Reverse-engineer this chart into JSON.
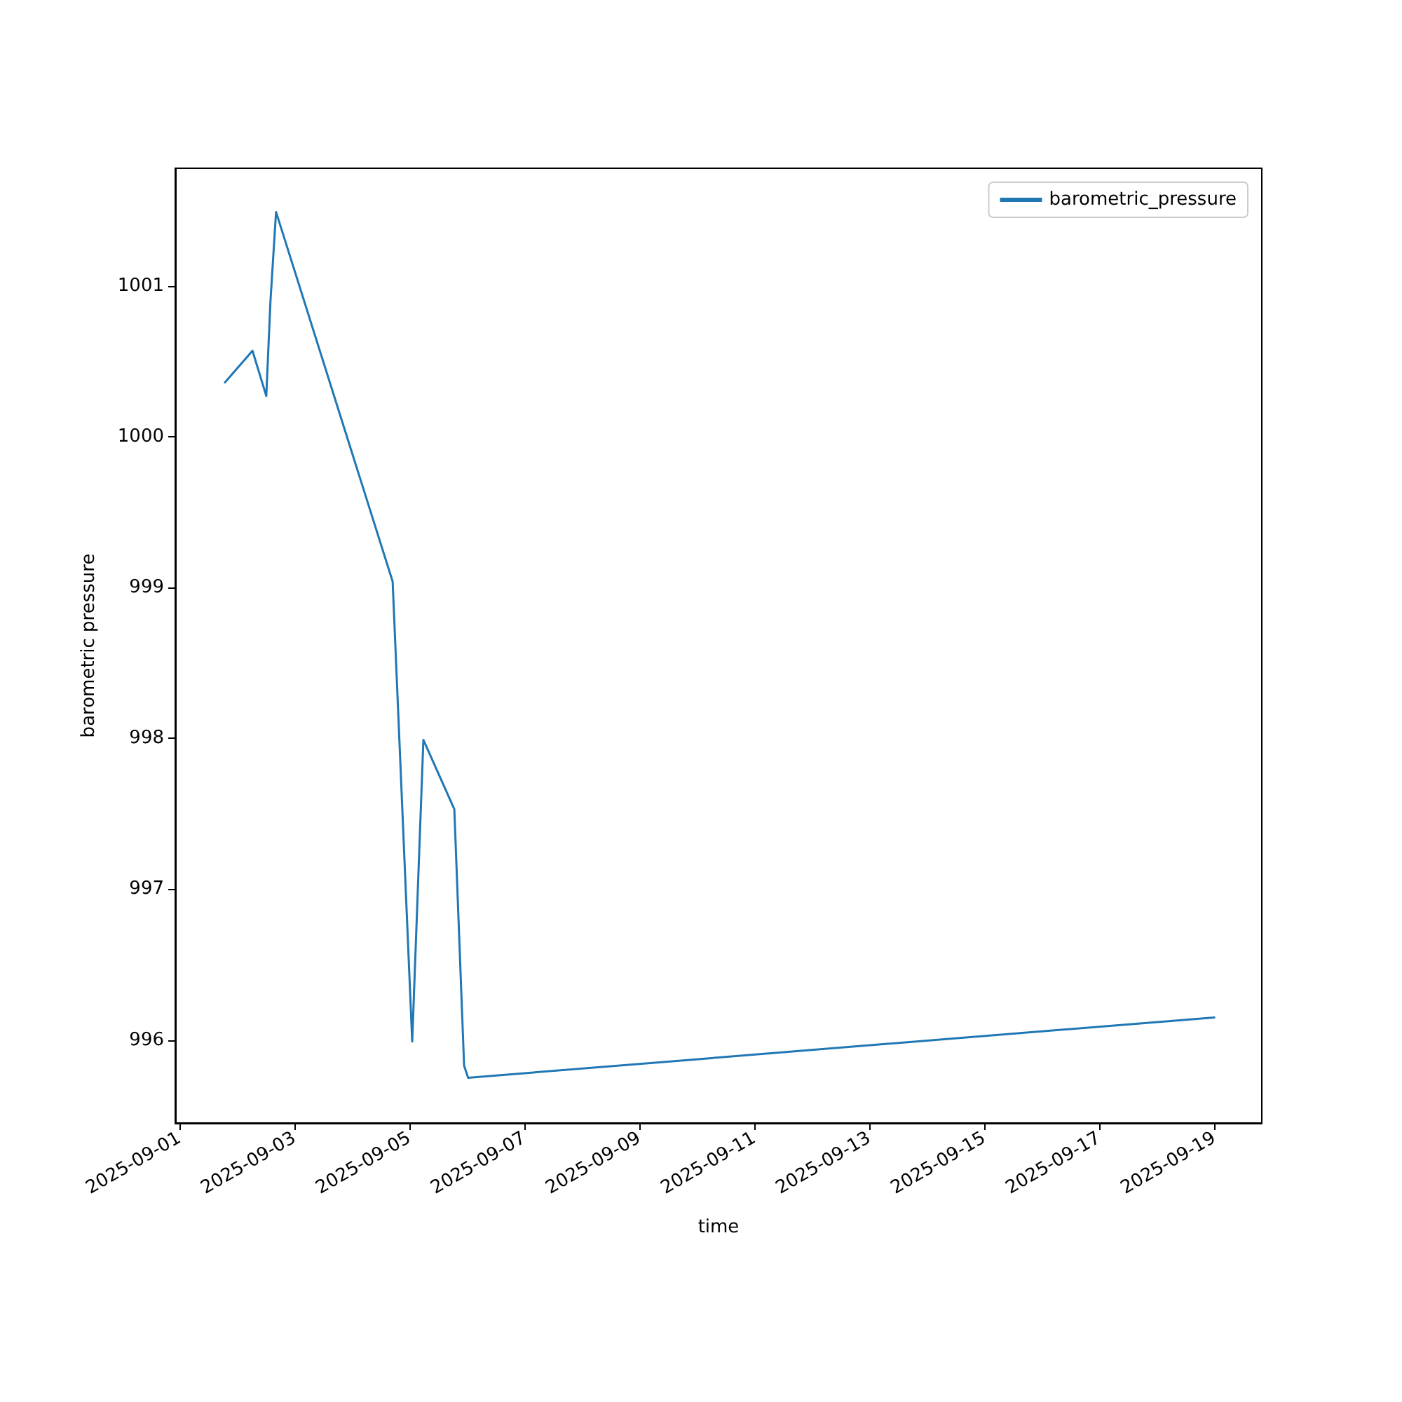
{
  "chart_data": {
    "type": "line",
    "xlabel": "time",
    "ylabel": "barometric pressure",
    "x": [
      "2025-09-01T19:00",
      "2025-09-02T06:30",
      "2025-09-02T12:15",
      "2025-09-02T14:00",
      "2025-09-02T16:20",
      "2025-09-04T17:00",
      "2025-09-05T01:10",
      "2025-09-05T05:50",
      "2025-09-05T18:45",
      "2025-09-05T22:50",
      "2025-09-06T00:30",
      "2025-09-19T00:00"
    ],
    "series": [
      {
        "name": "barometric_pressure",
        "color": "#1f77b4",
        "values": [
          1000.36,
          1000.57,
          1000.27,
          1000.9,
          1001.49,
          999.04,
          995.99,
          997.99,
          997.53,
          995.83,
          995.75,
          996.15
        ]
      }
    ],
    "xlim": [
      "2025-08-31T22:15",
      "2025-09-19T19:50"
    ],
    "xticks": [
      "2025-09-01",
      "2025-09-03",
      "2025-09-05",
      "2025-09-07",
      "2025-09-09",
      "2025-09-11",
      "2025-09-13",
      "2025-09-15",
      "2025-09-17",
      "2025-09-19"
    ],
    "ylim": [
      995.45,
      1001.78
    ],
    "yticks": [
      996,
      997,
      998,
      999,
      1000,
      1001
    ],
    "grid": false,
    "legend": "top right",
    "marker": "none",
    "line_style": "solid"
  }
}
